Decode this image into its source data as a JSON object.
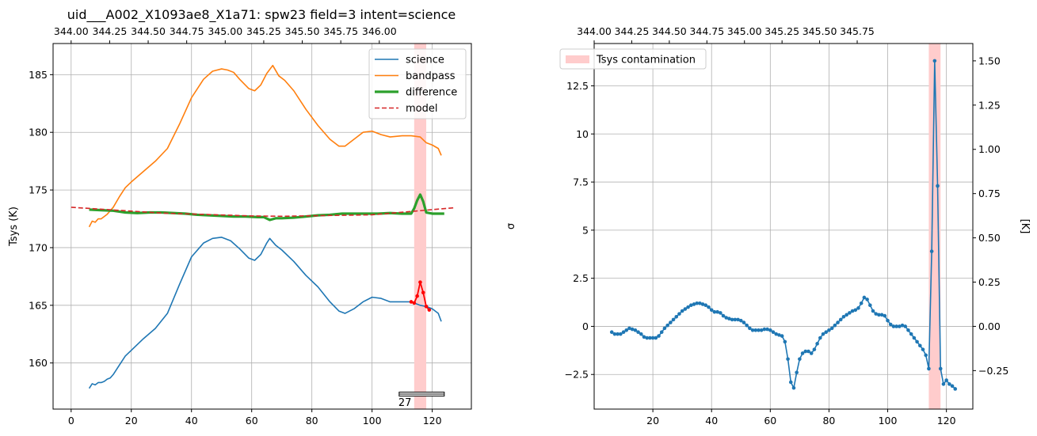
{
  "chart_data": [
    {
      "type": "line",
      "title": "uid___A002_X1093ae8_X1a71: spw23 field=3 intent=science",
      "ylabel": "Tsys (K)",
      "xlabel": "",
      "xlim": [
        -6,
        133
      ],
      "ylim": [
        156.0,
        187.7
      ],
      "xticks": [
        0,
        20,
        40,
        60,
        80,
        100,
        120
      ],
      "yticks": [
        160,
        165,
        170,
        175,
        180,
        185
      ],
      "top_axis": {
        "ticks": [
          344.0,
          344.25,
          344.5,
          344.75,
          345.0,
          345.25,
          345.5,
          345.75,
          346.0
        ],
        "tick_labels": [
          "344.00",
          "344.25",
          "344.50",
          "344.75",
          "345.00",
          "345.25",
          "345.50",
          "345.75",
          "346.00"
        ],
        "slope": 0.01953,
        "offset": 344.0
      },
      "grid": true,
      "legend": "top-right",
      "contamination_band": [
        114,
        118
      ],
      "annotation": {
        "text": "27",
        "range": [
          109,
          124
        ]
      },
      "series": [
        {
          "name": "science",
          "color": "#1f77b4",
          "style": "solid",
          "x": [
            6,
            7,
            8,
            9,
            10,
            11,
            12,
            13,
            14,
            16,
            18,
            20,
            24,
            28,
            32,
            36,
            40,
            44,
            47,
            50,
            53,
            56,
            59,
            61,
            63,
            65,
            66,
            67,
            68,
            70,
            74,
            78,
            82,
            86,
            89,
            91,
            94,
            97,
            100,
            103,
            106,
            110,
            113,
            116,
            118,
            120,
            122,
            123
          ],
          "y": [
            157.8,
            158.2,
            158.1,
            158.3,
            158.3,
            158.4,
            158.6,
            158.7,
            159.0,
            159.8,
            160.6,
            161.1,
            162.1,
            163.0,
            164.3,
            166.8,
            169.2,
            170.4,
            170.8,
            170.9,
            170.6,
            169.9,
            169.1,
            168.9,
            169.4,
            170.4,
            170.8,
            170.5,
            170.2,
            169.8,
            168.8,
            167.6,
            166.6,
            165.3,
            164.5,
            164.3,
            164.7,
            165.3,
            165.7,
            165.6,
            165.3,
            165.3,
            165.3,
            165.0,
            164.9,
            164.7,
            164.3,
            163.6
          ]
        },
        {
          "name": "bandpass",
          "color": "#ff7f0e",
          "style": "solid",
          "x": [
            6,
            7,
            8,
            9,
            10,
            11,
            12,
            14,
            16,
            18,
            20,
            24,
            28,
            32,
            36,
            40,
            44,
            47,
            50,
            52,
            54,
            56,
            59,
            61,
            63,
            65,
            67,
            69,
            71,
            74,
            78,
            82,
            86,
            89,
            91,
            94,
            97,
            100,
            103,
            106,
            110,
            113,
            116,
            118,
            120,
            122,
            123
          ],
          "y": [
            171.8,
            172.3,
            172.2,
            172.5,
            172.5,
            172.7,
            172.9,
            173.5,
            174.4,
            175.2,
            175.7,
            176.6,
            177.5,
            178.6,
            180.7,
            183.0,
            184.6,
            185.3,
            185.5,
            185.4,
            185.2,
            184.6,
            183.8,
            183.6,
            184.1,
            185.1,
            185.8,
            184.9,
            184.5,
            183.6,
            182.0,
            180.6,
            179.4,
            178.8,
            178.8,
            179.4,
            180.0,
            180.1,
            179.8,
            179.6,
            179.7,
            179.7,
            179.6,
            179.1,
            178.9,
            178.6,
            178.0
          ]
        },
        {
          "name": "difference",
          "color": "#2ca02c",
          "style": "solid",
          "x": [
            6,
            10,
            14,
            18,
            22,
            26,
            30,
            34,
            38,
            42,
            46,
            50,
            54,
            58,
            62,
            64,
            66,
            68,
            70,
            74,
            78,
            82,
            86,
            90,
            94,
            98,
            102,
            106,
            110,
            113,
            114,
            115,
            116,
            117,
            118,
            120,
            122,
            124
          ],
          "y": [
            173.3,
            173.25,
            173.2,
            173.05,
            173.0,
            173.05,
            173.05,
            173.0,
            172.95,
            172.85,
            172.8,
            172.75,
            172.7,
            172.7,
            172.65,
            172.65,
            172.4,
            172.55,
            172.55,
            172.6,
            172.7,
            172.8,
            172.85,
            172.95,
            172.95,
            172.95,
            172.95,
            173.0,
            172.95,
            172.95,
            173.4,
            174.1,
            174.6,
            174.0,
            173.05,
            172.95,
            172.95,
            172.95
          ]
        },
        {
          "name": "model",
          "color": "#d62728",
          "style": "dashed",
          "x": [
            0,
            30,
            60,
            70,
            100,
            127
          ],
          "y": [
            173.5,
            173.0,
            172.75,
            172.72,
            172.85,
            173.45
          ]
        },
        {
          "name": "",
          "color": "#ff0000",
          "style": "markers",
          "x": [
            113,
            114,
            115,
            116,
            117,
            118,
            119
          ],
          "y": [
            165.3,
            165.2,
            165.8,
            167.0,
            166.1,
            164.9,
            164.6
          ]
        }
      ]
    },
    {
      "type": "line",
      "title": "",
      "ylabel": "σ",
      "ylabel_right": "[K]",
      "xlabel": "",
      "xlim": [
        0,
        129
      ],
      "ylim": [
        -4.3,
        14.7
      ],
      "xticks": [
        20,
        40,
        60,
        80,
        100,
        120
      ],
      "yticks": [
        -2.5,
        0.0,
        2.5,
        5.0,
        7.5,
        10.0,
        12.5
      ],
      "top_axis": {
        "ticks": [
          344.0,
          344.25,
          344.5,
          344.75,
          345.0,
          345.25,
          345.5,
          345.75
        ],
        "tick_labels": [
          "344.00",
          "344.25",
          "344.50",
          "344.75",
          "345.00",
          "345.25",
          "345.50",
          "345.75"
        ],
        "slope": 0.01953,
        "offset": 344.0
      },
      "right_axis": {
        "ticks": [
          -0.25,
          0.0,
          0.25,
          0.5,
          0.75,
          1.0,
          1.25,
          1.5
        ],
        "tick_labels": [
          "−0.25",
          "0.00",
          "0.25",
          "0.50",
          "0.75",
          "1.00",
          "1.25",
          "1.50"
        ],
        "scale_per_sigma": 0.1087
      },
      "grid": true,
      "legend": "top-left",
      "contamination_band": [
        114,
        118
      ],
      "series": [
        {
          "name": "",
          "color": "#1f77b4",
          "style": "line-markers",
          "x": [
            6,
            7,
            8,
            9,
            10,
            11,
            12,
            13,
            14,
            15,
            16,
            17,
            18,
            19,
            20,
            21,
            22,
            23,
            24,
            25,
            26,
            27,
            28,
            29,
            30,
            31,
            32,
            33,
            34,
            35,
            36,
            37,
            38,
            39,
            40,
            41,
            42,
            43,
            44,
            45,
            46,
            47,
            48,
            49,
            50,
            51,
            52,
            53,
            54,
            55,
            56,
            57,
            58,
            59,
            60,
            61,
            62,
            63,
            64,
            65,
            66,
            67,
            68,
            69,
            70,
            71,
            72,
            73,
            74,
            75,
            76,
            77,
            78,
            79,
            80,
            81,
            82,
            83,
            84,
            85,
            86,
            87,
            88,
            89,
            90,
            91,
            92,
            93,
            94,
            95,
            96,
            97,
            98,
            99,
            100,
            101,
            102,
            103,
            104,
            105,
            106,
            107,
            108,
            109,
            110,
            111,
            112,
            113,
            114,
            115,
            116,
            117,
            118,
            119,
            120,
            121,
            122,
            123
          ],
          "y": [
            -0.3,
            -0.4,
            -0.4,
            -0.4,
            -0.3,
            -0.2,
            -0.1,
            -0.15,
            -0.2,
            -0.3,
            -0.4,
            -0.55,
            -0.6,
            -0.6,
            -0.6,
            -0.6,
            -0.5,
            -0.3,
            -0.1,
            0.05,
            0.2,
            0.35,
            0.5,
            0.65,
            0.8,
            0.9,
            1.0,
            1.1,
            1.15,
            1.2,
            1.2,
            1.15,
            1.1,
            1.0,
            0.85,
            0.75,
            0.75,
            0.7,
            0.55,
            0.45,
            0.4,
            0.35,
            0.35,
            0.35,
            0.3,
            0.2,
            0.05,
            -0.1,
            -0.2,
            -0.2,
            -0.2,
            -0.2,
            -0.15,
            -0.15,
            -0.2,
            -0.3,
            -0.4,
            -0.45,
            -0.5,
            -0.8,
            -1.7,
            -2.9,
            -3.2,
            -2.4,
            -1.7,
            -1.4,
            -1.3,
            -1.3,
            -1.4,
            -1.2,
            -0.9,
            -0.6,
            -0.4,
            -0.3,
            -0.2,
            -0.1,
            0.05,
            0.2,
            0.35,
            0.5,
            0.6,
            0.7,
            0.8,
            0.85,
            0.95,
            1.2,
            1.5,
            1.4,
            1.1,
            0.8,
            0.65,
            0.6,
            0.6,
            0.55,
            0.3,
            0.1,
            0.0,
            0.0,
            0.0,
            0.05,
            0.0,
            -0.2,
            -0.4,
            -0.6,
            -0.8,
            -1.0,
            -1.2,
            -1.5,
            -2.2,
            3.9,
            13.8,
            7.3,
            -2.2,
            -3.0,
            -2.8,
            -3.0,
            -3.1,
            -3.25
          ]
        }
      ],
      "legend_entries": [
        {
          "name": "Tsys contamination",
          "color": "#ffcccc"
        }
      ]
    }
  ]
}
